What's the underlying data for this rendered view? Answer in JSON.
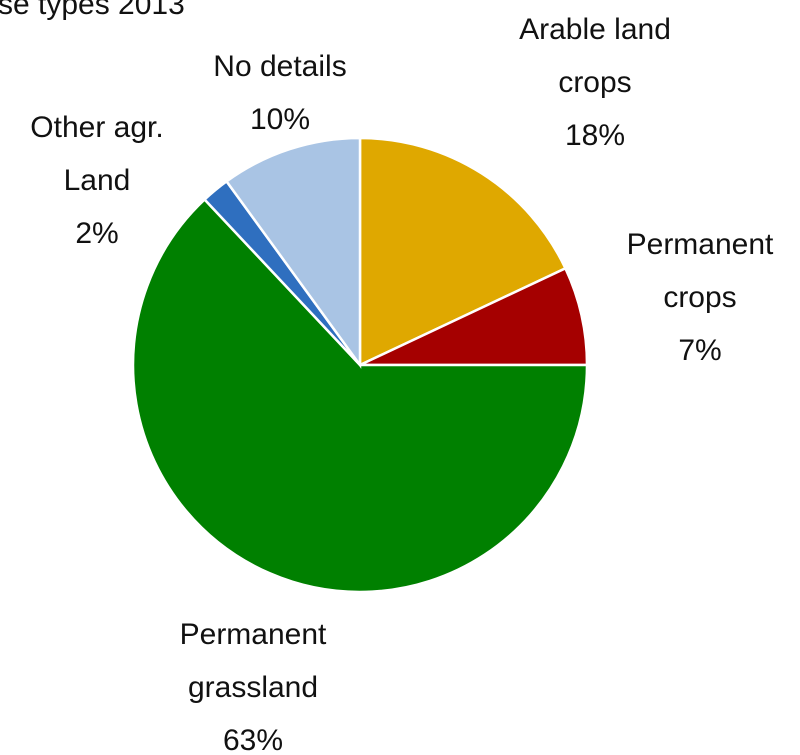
{
  "chart_data": {
    "type": "pie",
    "title": "se types 2013",
    "categories": [
      "Arable land crops",
      "Permanent crops",
      "Permanent grassland",
      "Other agr. Land",
      "No details"
    ],
    "values": [
      18,
      7,
      63,
      2,
      10
    ],
    "value_labels": [
      "18%",
      "7%",
      "63%",
      "2%",
      "10%"
    ],
    "colors": [
      "#dfa800",
      "#a50000",
      "#008000",
      "#2f6fbf",
      "#a9c4e4"
    ]
  }
}
